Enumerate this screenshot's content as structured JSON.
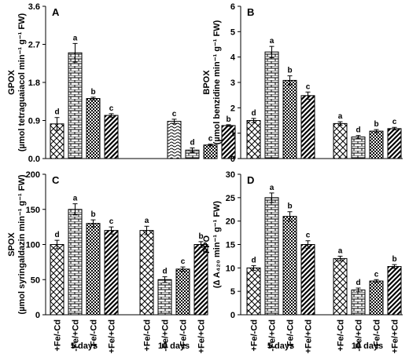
{
  "treatment_labels": [
    "+Fe/-Cd",
    "-Fe/+Cd",
    "-Fe/-Cd",
    "+Fe/+Cd"
  ],
  "group_labels": [
    "5 days",
    "10 days"
  ],
  "chart_data": [
    {
      "type": "bar",
      "panel": "A",
      "ylabel_lines": [
        "GPOX",
        "(µmol tetraguaiacol min⁻¹ g⁻¹ FW)"
      ],
      "ylim": [
        0,
        3.6
      ],
      "yticks": [
        "0.0",
        "0.9",
        "1.8",
        "2.7",
        "3.6"
      ],
      "yvals": [
        0,
        0.9,
        1.8,
        2.7,
        3.6
      ],
      "groups": [
        {
          "values": [
            0.82,
            2.5,
            1.42,
            1.02
          ],
          "errors": [
            0.15,
            0.22,
            0.03,
            0.04
          ],
          "letters": [
            "d",
            "a",
            "b",
            "c"
          ]
        },
        {
          "values": [
            0.88,
            0.2,
            0.32,
            0.78
          ],
          "errors": [
            0.05,
            0.05,
            0.02,
            0.02
          ],
          "letters": [
            "c",
            "d",
            "c",
            "b"
          ]
        }
      ],
      "show_x_labels": false
    },
    {
      "type": "bar",
      "panel": "B",
      "ylabel_lines": [
        "BPOX",
        "(µmol benzidine min⁻¹ g⁻¹ FW)"
      ],
      "ylim": [
        0,
        6
      ],
      "yticks": [
        "0",
        "1",
        "2",
        "3",
        "4",
        "5",
        "6"
      ],
      "yvals": [
        0,
        1,
        2,
        3,
        4,
        5,
        6
      ],
      "groups": [
        {
          "values": [
            1.5,
            4.2,
            3.08,
            2.48
          ],
          "errors": [
            0.08,
            0.22,
            0.18,
            0.14
          ],
          "letters": [
            "d",
            "a",
            "b",
            "c"
          ]
        },
        {
          "values": [
            1.38,
            0.85,
            1.08,
            1.18
          ],
          "errors": [
            0.07,
            0.06,
            0.06,
            0.05
          ],
          "letters": [
            "a",
            "d",
            "b",
            "c"
          ]
        }
      ],
      "show_x_labels": false
    },
    {
      "type": "bar",
      "panel": "C",
      "ylabel_lines": [
        "SPOX",
        "(µmol syringaldazin min⁻¹ g⁻¹ FW)"
      ],
      "ylim": [
        0,
        200
      ],
      "yticks": [
        "0",
        "50",
        "100",
        "150",
        "200"
      ],
      "yvals": [
        0,
        50,
        100,
        150,
        200
      ],
      "groups": [
        {
          "values": [
            100,
            150,
            130,
            120
          ],
          "errors": [
            6,
            8,
            5,
            5
          ],
          "letters": [
            "d",
            "a",
            "b",
            "c"
          ]
        },
        {
          "values": [
            120,
            50,
            65,
            100
          ],
          "errors": [
            6,
            4,
            3,
            4
          ],
          "letters": [
            "a",
            "d",
            "c",
            "b"
          ]
        }
      ],
      "show_x_labels": true
    },
    {
      "type": "bar",
      "panel": "D",
      "ylabel_lines": [
        "PPO",
        "(∆ A₄₂₀ min⁻¹ g⁻¹ FW)"
      ],
      "ylim": [
        0,
        30
      ],
      "yticks": [
        "0",
        "5",
        "10",
        "15",
        "20",
        "25",
        "30"
      ],
      "yvals": [
        0,
        5,
        10,
        15,
        20,
        25,
        30
      ],
      "groups": [
        {
          "values": [
            10,
            25,
            21,
            15
          ],
          "errors": [
            0.5,
            1.0,
            1.0,
            0.8
          ],
          "letters": [
            "d",
            "a",
            "b",
            "c"
          ]
        },
        {
          "values": [
            12,
            5.3,
            7.2,
            10.3
          ],
          "errors": [
            0.5,
            0.4,
            0.3,
            0.4
          ],
          "letters": [
            "a",
            "d",
            "c",
            "b"
          ]
        }
      ],
      "show_x_labels": true
    }
  ]
}
